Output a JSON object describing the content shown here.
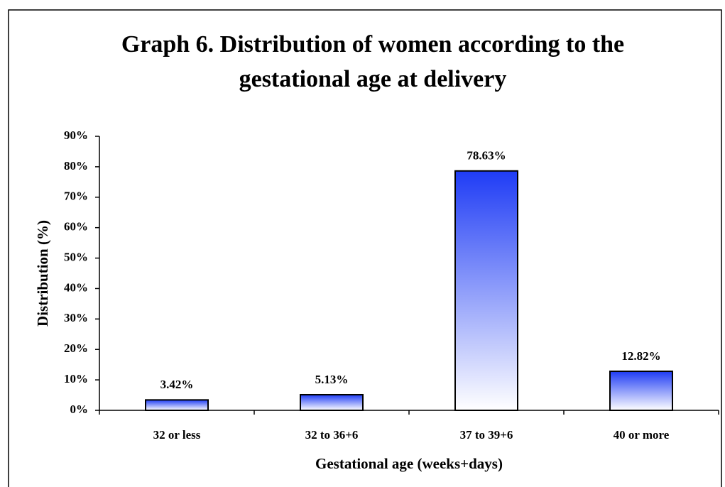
{
  "chart_data": {
    "type": "bar",
    "title": "Graph 6. Distribution of women according to the gestational age at delivery",
    "xlabel": "Gestational age (weeks+days)",
    "ylabel": "Distribution (%)",
    "categories": [
      "32 or less",
      "32 to 36+6",
      "37 to 39+6",
      "40 or more"
    ],
    "values": [
      3.42,
      5.13,
      78.63,
      12.82
    ],
    "value_labels": [
      "3.42%",
      "5.13%",
      "78.63%",
      "12.82%"
    ],
    "color": "#1f3cf5",
    "ylim": [
      0,
      90
    ],
    "yticks": [
      {
        "value": 0,
        "label": "0%"
      },
      {
        "value": 10,
        "label": "10%"
      },
      {
        "value": 20,
        "label": "20%"
      },
      {
        "value": 30,
        "label": "30%"
      },
      {
        "value": 40,
        "label": "40%"
      },
      {
        "value": 50,
        "label": "50%"
      },
      {
        "value": 60,
        "label": "60%"
      },
      {
        "value": 70,
        "label": "70%"
      },
      {
        "value": 80,
        "label": "80%"
      },
      {
        "value": 90,
        "label": "90%"
      }
    ],
    "grid": false
  }
}
